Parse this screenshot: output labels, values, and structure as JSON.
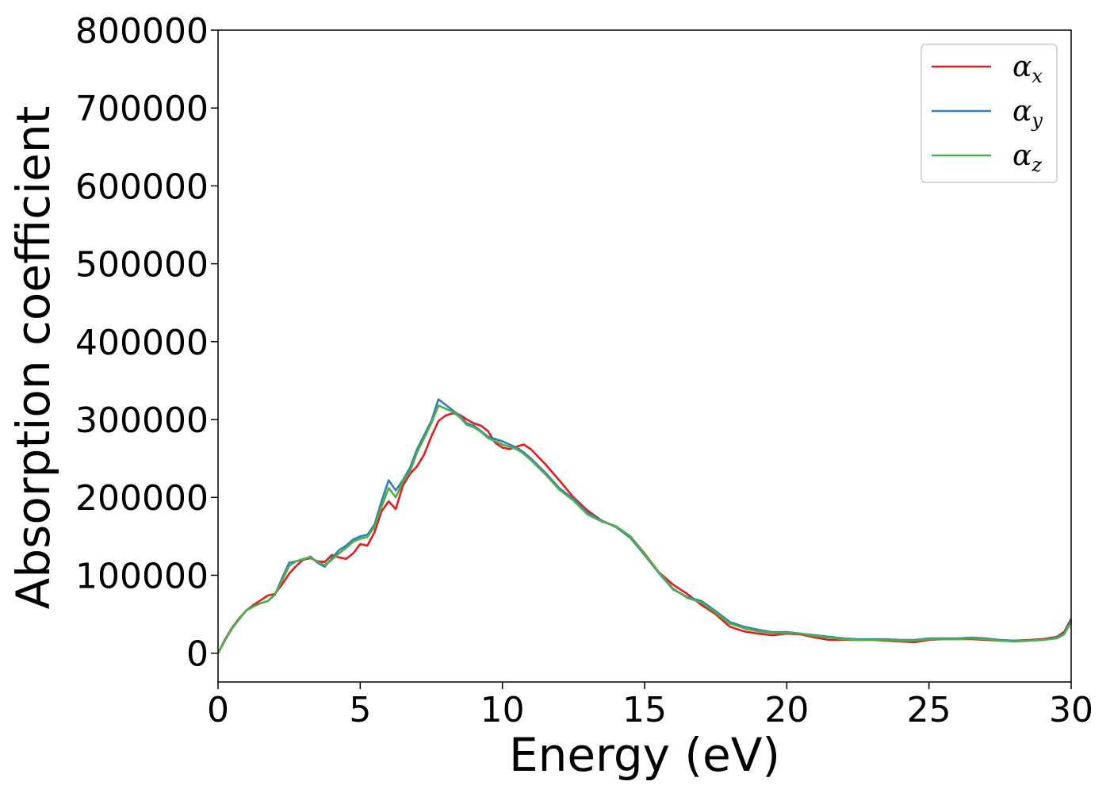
{
  "chart_data": {
    "type": "line",
    "title": "",
    "xlabel": "Energy (eV)",
    "ylabel": "Absorption coefficient",
    "xlim": [
      0,
      30
    ],
    "ylim": [
      -37000,
      800000
    ],
    "xticks": [
      0,
      5,
      10,
      15,
      20,
      25,
      30
    ],
    "yticks": [
      0,
      100000,
      200000,
      300000,
      400000,
      500000,
      600000,
      700000,
      800000
    ],
    "xtick_labels": [
      "0",
      "5",
      "10",
      "15",
      "20",
      "25",
      "30"
    ],
    "ytick_labels": [
      "0",
      "100000",
      "200000",
      "300000",
      "400000",
      "500000",
      "600000",
      "700000",
      "800000"
    ],
    "grid": false,
    "legend_position": "top-right",
    "colors": {
      "alpha_x": "#e41a1c",
      "alpha_y": "#377eb8",
      "alpha_z": "#4daf4a"
    },
    "series": [
      {
        "name": "α_x",
        "name_base": "α",
        "name_sub": "x",
        "color": "#e41a1c",
        "x": [
          0,
          0.25,
          0.5,
          0.75,
          1,
          1.25,
          1.5,
          1.75,
          2,
          2.25,
          2.5,
          2.75,
          3,
          3.25,
          3.5,
          3.75,
          4,
          4.25,
          4.5,
          4.75,
          5,
          5.25,
          5.5,
          5.75,
          6,
          6.25,
          6.5,
          6.75,
          7,
          7.25,
          7.5,
          7.75,
          8,
          8.25,
          8.5,
          8.75,
          9,
          9.25,
          9.5,
          9.75,
          10,
          10.25,
          10.5,
          10.75,
          11,
          11.5,
          12,
          12.5,
          13,
          13.5,
          14,
          14.5,
          15,
          15.5,
          16,
          16.5,
          17,
          17.5,
          18,
          18.5,
          19,
          19.5,
          20,
          20.5,
          21,
          21.5,
          22,
          22.5,
          23,
          23.5,
          24,
          24.5,
          25,
          25.5,
          26,
          26.5,
          27,
          27.5,
          28,
          28.5,
          29,
          29.5,
          29.75,
          30
        ],
        "y": [
          0,
          18000,
          33000,
          45000,
          55000,
          62000,
          68000,
          74000,
          76000,
          88000,
          102000,
          112000,
          120000,
          122000,
          118000,
          117000,
          126000,
          123000,
          121000,
          128000,
          140000,
          138000,
          155000,
          182000,
          195000,
          185000,
          215000,
          230000,
          240000,
          255000,
          278000,
          298000,
          305000,
          308000,
          306000,
          300000,
          295000,
          292000,
          285000,
          270000,
          264000,
          262000,
          265000,
          268000,
          262000,
          243000,
          222000,
          200000,
          183000,
          170000,
          162000,
          150000,
          128000,
          104000,
          88000,
          76000,
          62000,
          50000,
          34000,
          28000,
          25000,
          23000,
          25000,
          24000,
          20000,
          17000,
          17000,
          17000,
          17000,
          16000,
          15000,
          14000,
          17000,
          18000,
          18000,
          18000,
          17000,
          16000,
          16000,
          17000,
          18000,
          21000,
          27000,
          44000
        ]
      },
      {
        "name": "α_y",
        "name_base": "α",
        "name_sub": "y",
        "color": "#377eb8",
        "x": [
          0,
          0.25,
          0.5,
          0.75,
          1,
          1.25,
          1.5,
          1.75,
          2,
          2.25,
          2.5,
          2.75,
          3,
          3.25,
          3.5,
          3.75,
          4,
          4.25,
          4.5,
          4.75,
          5,
          5.25,
          5.5,
          5.75,
          6,
          6.25,
          6.5,
          6.75,
          7,
          7.25,
          7.5,
          7.75,
          8,
          8.25,
          8.5,
          8.75,
          9,
          9.25,
          9.5,
          9.75,
          10,
          10.25,
          10.5,
          10.75,
          11,
          11.5,
          12,
          12.5,
          13,
          13.5,
          14,
          14.5,
          15,
          15.5,
          16,
          16.5,
          17,
          17.5,
          18,
          18.5,
          19,
          19.5,
          20,
          20.5,
          21,
          21.5,
          22,
          22.5,
          23,
          23.5,
          24,
          24.5,
          25,
          25.5,
          26,
          26.5,
          27,
          27.5,
          28,
          28.5,
          29,
          29.5,
          29.75,
          30
        ],
        "y": [
          0,
          17000,
          32000,
          44000,
          55000,
          60000,
          64000,
          67000,
          75000,
          96000,
          116000,
          118000,
          120000,
          124000,
          116000,
          111000,
          122000,
          132000,
          138000,
          146000,
          150000,
          152000,
          165000,
          195000,
          222000,
          209000,
          222000,
          238000,
          262000,
          280000,
          298000,
          326000,
          319000,
          312000,
          305000,
          295000,
          292000,
          285000,
          278000,
          275000,
          272000,
          268000,
          264000,
          258000,
          250000,
          232000,
          212000,
          198000,
          180000,
          170000,
          162000,
          148000,
          126000,
          103000,
          82000,
          72000,
          67000,
          54000,
          40000,
          34000,
          30000,
          27000,
          27000,
          25000,
          23000,
          21000,
          19000,
          18000,
          18000,
          18000,
          17000,
          17000,
          19000,
          19000,
          19000,
          20000,
          19000,
          17000,
          16000,
          16000,
          17000,
          20000,
          25000,
          42000
        ]
      },
      {
        "name": "α_z",
        "name_base": "α",
        "name_sub": "z",
        "color": "#4daf4a",
        "x": [
          0,
          0.25,
          0.5,
          0.75,
          1,
          1.25,
          1.5,
          1.75,
          2,
          2.25,
          2.5,
          2.75,
          3,
          3.25,
          3.5,
          3.75,
          4,
          4.25,
          4.5,
          4.75,
          5,
          5.25,
          5.5,
          5.75,
          6,
          6.25,
          6.5,
          6.75,
          7,
          7.25,
          7.5,
          7.75,
          8,
          8.25,
          8.5,
          8.75,
          9,
          9.25,
          9.5,
          9.75,
          10,
          10.25,
          10.5,
          10.75,
          11,
          11.5,
          12,
          12.5,
          13,
          13.5,
          14,
          14.5,
          15,
          15.5,
          16,
          16.5,
          17,
          17.5,
          18,
          18.5,
          19,
          19.5,
          20,
          20.5,
          21,
          21.5,
          22,
          22.5,
          23,
          23.5,
          24,
          24.5,
          25,
          25.5,
          26,
          26.5,
          27,
          27.5,
          28,
          28.5,
          29,
          29.5,
          29.75,
          30
        ],
        "y": [
          0,
          17000,
          32000,
          44000,
          55000,
          60000,
          64000,
          67000,
          75000,
          93000,
          112000,
          118000,
          121000,
          123000,
          117000,
          113000,
          120000,
          128000,
          135000,
          143000,
          147000,
          149000,
          162000,
          188000,
          212000,
          200000,
          220000,
          233000,
          258000,
          276000,
          295000,
          318000,
          314000,
          310000,
          303000,
          293000,
          290000,
          284000,
          276000,
          272000,
          268000,
          265000,
          262000,
          256000,
          248000,
          230000,
          210000,
          196000,
          178000,
          169000,
          163000,
          150000,
          127000,
          104000,
          83000,
          71000,
          65000,
          52000,
          38000,
          32000,
          28000,
          26000,
          26000,
          25000,
          22000,
          20000,
          18000,
          17000,
          17000,
          17000,
          16000,
          16000,
          18000,
          18000,
          18000,
          19000,
          18000,
          16000,
          15000,
          16000,
          17000,
          19000,
          24000,
          40000
        ]
      }
    ]
  }
}
